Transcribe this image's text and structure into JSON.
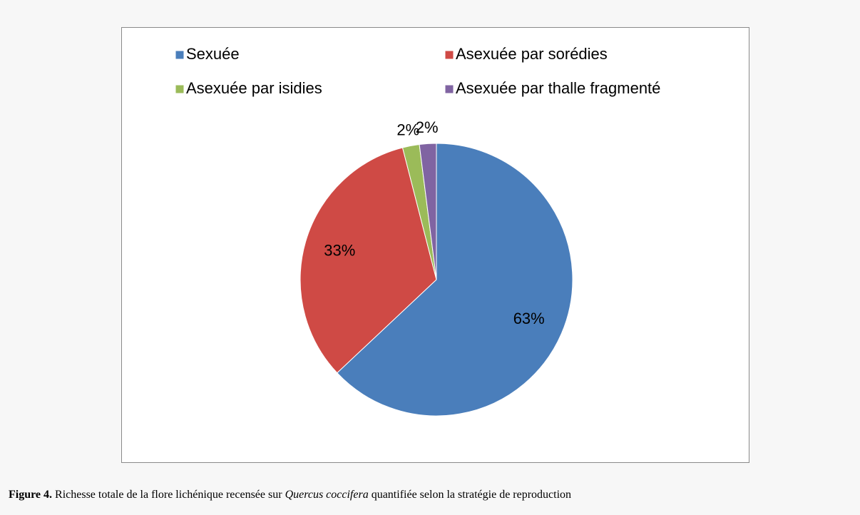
{
  "chart_data": {
    "type": "pie",
    "categories": [
      "Sexuée",
      "Asexuée par sorédies",
      "Asexuée par isidies",
      "Asexuée par thalle fragmenté"
    ],
    "values": [
      63,
      33,
      2,
      2
    ],
    "value_labels": [
      "63%",
      "33%",
      "2%",
      "2%"
    ],
    "colors": [
      "#4a7ebb",
      "#cf4a45",
      "#9bbb59",
      "#8064a2"
    ],
    "legend": "top",
    "caption": {
      "label": "Figure 4.",
      "text": "Richesse totale de la flore lichénique recensée sur",
      "species": "Quercus coccifera",
      "rest": "quantifiée selon la stratégie de reproduction"
    }
  }
}
